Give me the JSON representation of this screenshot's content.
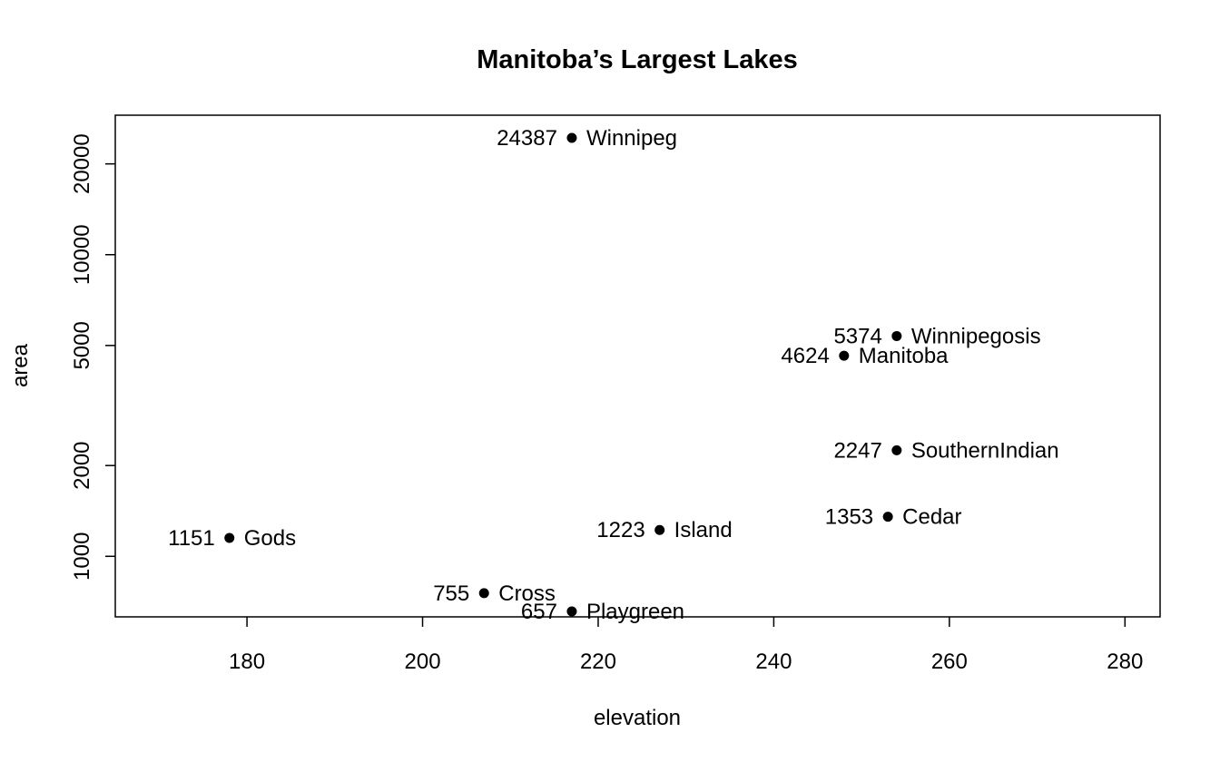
{
  "chart_data": {
    "type": "scatter",
    "title": "Manitoba’s Largest Lakes",
    "xlabel": "elevation",
    "ylabel": "area",
    "xlim": [
      165,
      284
    ],
    "ylim": [
      630,
      29000
    ],
    "y_scale": "log",
    "x_ticks": [
      180,
      200,
      220,
      240,
      260,
      280
    ],
    "y_ticks": [
      1000,
      2000,
      5000,
      10000,
      20000
    ],
    "grid": false,
    "legend": "none",
    "point_color": "#000000",
    "points": [
      {
        "name": "Winnipeg",
        "elevation": 217,
        "area": 24387
      },
      {
        "name": "Winnipegosis",
        "elevation": 254,
        "area": 5374
      },
      {
        "name": "Manitoba",
        "elevation": 248,
        "area": 4624
      },
      {
        "name": "SouthernIndian",
        "elevation": 254,
        "area": 2247
      },
      {
        "name": "Cedar",
        "elevation": 253,
        "area": 1353
      },
      {
        "name": "Island",
        "elevation": 227,
        "area": 1223
      },
      {
        "name": "Gods",
        "elevation": 178,
        "area": 1151
      },
      {
        "name": "Cross",
        "elevation": 207,
        "area": 755
      },
      {
        "name": "Playgreen",
        "elevation": 217,
        "area": 657
      }
    ]
  }
}
